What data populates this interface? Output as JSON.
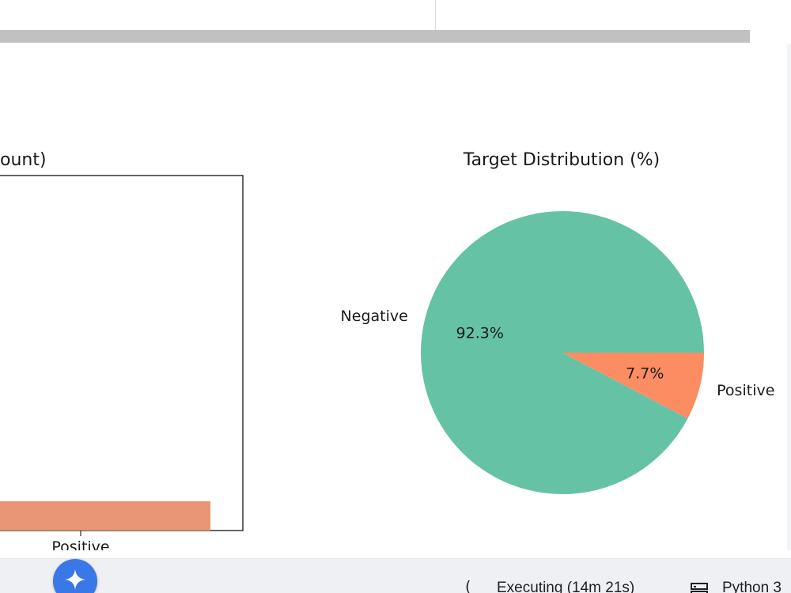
{
  "status_bar": {
    "execution_status": "Executing (14m 21s)",
    "runtime_label": "Python 3",
    "gemini_icon": "sparkle-icon",
    "runtime_icon": "server-icon",
    "spinner_icon": "spinner-icon"
  },
  "colors": {
    "negative": "#66c2a5",
    "positive": "#fc8d62",
    "bar_positive": "#e99675",
    "gemini_button": "#3b78e7"
  },
  "chart_data": [
    {
      "type": "bar",
      "title": "ount)",
      "categories": [
        "Positive"
      ],
      "visible_fraction_note": "",
      "series": [
        {
          "values": [
            null
          ]
        }
      ],
      "xlabel": "",
      "ylabel": ""
    },
    {
      "type": "pie",
      "title": "Target Distribution (%)",
      "labels": [
        "Negative",
        "Positive"
      ],
      "values": [
        92.3,
        7.7
      ],
      "value_labels": [
        "92.3%",
        "7.7%"
      ]
    }
  ]
}
